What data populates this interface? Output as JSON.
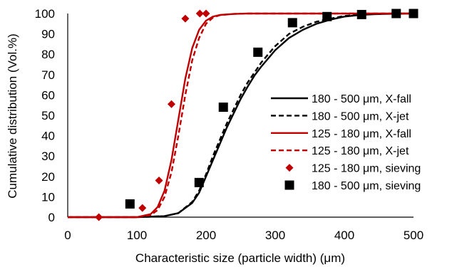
{
  "chart_data": {
    "type": "line",
    "title": "",
    "xlabel": "Characteristic size (particle width)  (μm)",
    "ylabel": "Cumulative distribution (Vol.%)",
    "xlim": [
      0,
      500
    ],
    "ylim": [
      0,
      100
    ],
    "x_ticks": [
      "0",
      "100",
      "200",
      "300",
      "400",
      "500"
    ],
    "y_ticks": [
      "0",
      "10",
      "20",
      "30",
      "40",
      "50",
      "60",
      "70",
      "80",
      "90",
      "100"
    ],
    "grid": false,
    "legend_position": "right",
    "series": [
      {
        "name": "180 - 500 μm, X-fall",
        "kind": "line",
        "style": "solid",
        "color": "#000000",
        "x": [
          0,
          100,
          140,
          160,
          180,
          190,
          200,
          210,
          220,
          230,
          240,
          250,
          260,
          270,
          280,
          300,
          320,
          340,
          360,
          380,
          400,
          420,
          440,
          460,
          480,
          500
        ],
        "y": [
          0,
          0,
          0.5,
          2,
          7,
          12,
          20,
          28,
          36,
          44,
          51,
          58,
          64,
          69.5,
          74,
          82,
          88,
          92,
          95,
          97,
          98.5,
          99.2,
          99.6,
          99.8,
          99.9,
          100
        ]
      },
      {
        "name": "180 - 500 μm, X-jet",
        "kind": "line",
        "style": "dashed",
        "color": "#000000",
        "x": [
          0,
          100,
          140,
          160,
          180,
          190,
          200,
          210,
          220,
          230,
          240,
          250,
          260,
          270,
          280,
          300,
          320,
          340,
          360,
          380,
          400,
          420,
          440,
          460,
          480,
          500
        ],
        "y": [
          0,
          0,
          0.5,
          2,
          7.5,
          13,
          21,
          30,
          38,
          46,
          53,
          60,
          66,
          71,
          76,
          84,
          90,
          93.5,
          96,
          97.5,
          98.8,
          99.4,
          99.7,
          99.9,
          100,
          100
        ]
      },
      {
        "name": "125 - 180 μm, X-fall",
        "kind": "line",
        "style": "solid",
        "color": "#c00000",
        "x": [
          0,
          100,
          120,
          130,
          140,
          150,
          160,
          170,
          180,
          190,
          200,
          210,
          220,
          240,
          260,
          300,
          400,
          500
        ],
        "y": [
          0,
          0,
          1.5,
          5,
          13,
          28,
          48,
          68,
          83,
          92,
          96.5,
          98.5,
          99.3,
          99.8,
          100,
          100,
          100,
          100
        ]
      },
      {
        "name": "125 - 180 μm, X-jet",
        "kind": "line",
        "style": "dashed",
        "color": "#c00000",
        "x": [
          0,
          100,
          120,
          130,
          140,
          150,
          160,
          170,
          180,
          190,
          200,
          210,
          220,
          240,
          260,
          300,
          400,
          500
        ],
        "y": [
          0,
          0,
          1,
          3.5,
          10,
          22,
          40,
          60,
          77,
          88,
          95,
          98,
          99.2,
          99.8,
          100,
          100,
          100,
          100
        ]
      },
      {
        "name": "125 - 180 μm, sieving",
        "kind": "scatter",
        "marker": "diamond",
        "color": "#c00000",
        "x": [
          45,
          108,
          132,
          150,
          170,
          191,
          200
        ],
        "y": [
          0,
          4.5,
          18,
          55.5,
          97.5,
          100,
          100
        ]
      },
      {
        "name": "180 - 500 μm, sieving",
        "kind": "scatter",
        "marker": "square",
        "color": "#000000",
        "x": [
          90,
          190,
          225,
          275,
          325,
          375,
          425,
          475,
          500
        ],
        "y": [
          6.5,
          17,
          54,
          81,
          95.5,
          98.5,
          99.5,
          100,
          100
        ]
      }
    ]
  }
}
